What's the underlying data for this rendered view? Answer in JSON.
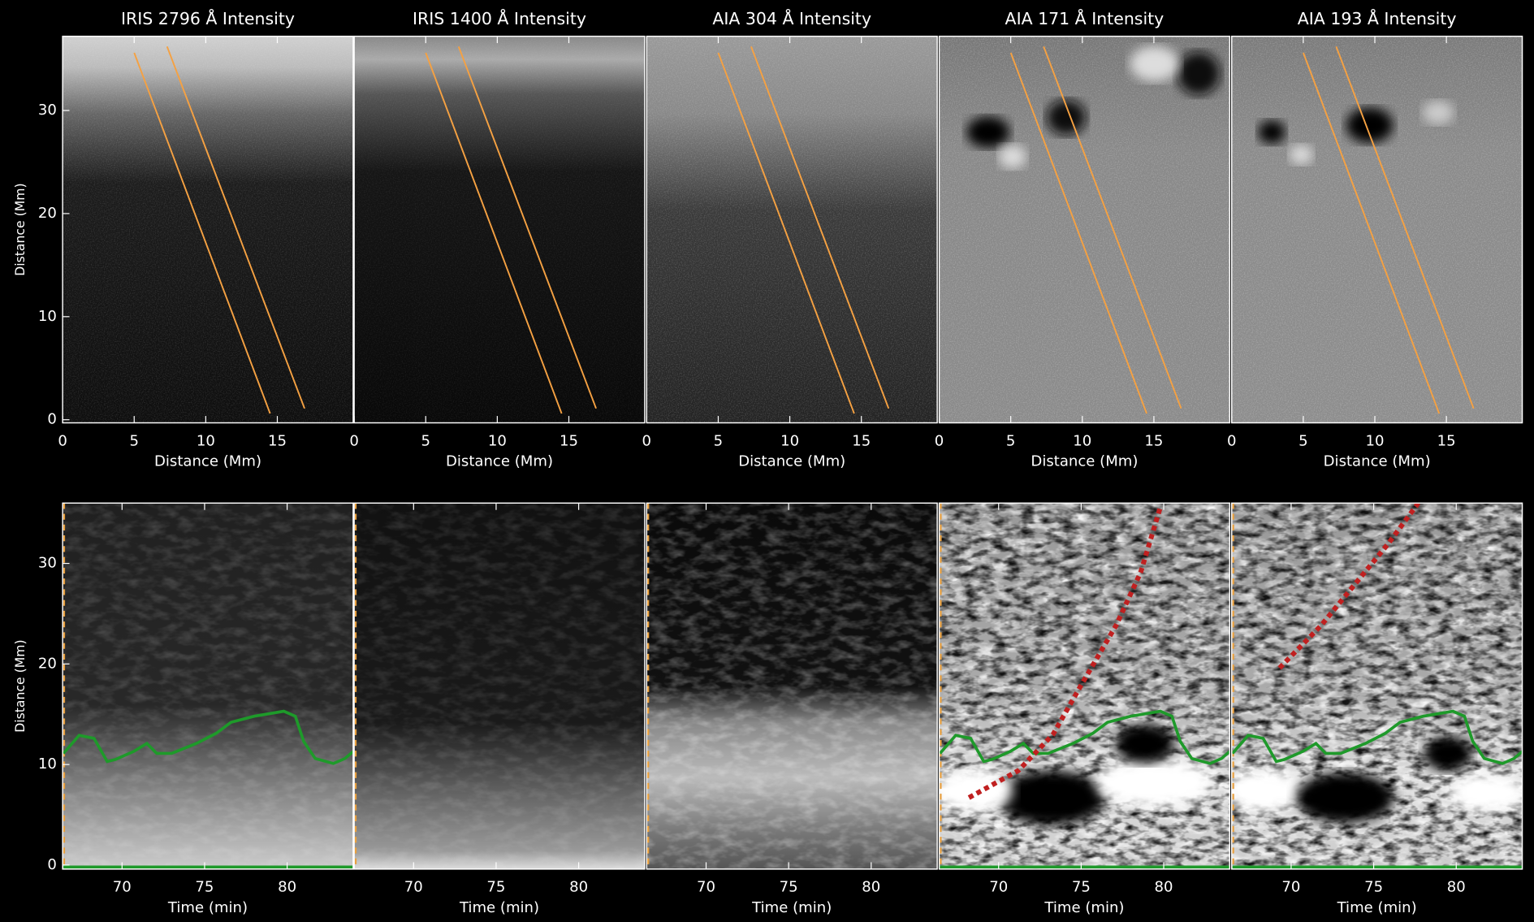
{
  "chart_data": [
    {
      "type": "line",
      "title": "IRIS 2796 Å Intensity",
      "xlabel": "Distance (Mm)",
      "ylabel": "Distance (Mm)",
      "xlim": [
        0,
        20.3
      ],
      "ylim": [
        -0.3,
        37.2
      ],
      "xticks": [
        0,
        5,
        10,
        15
      ],
      "yticks": [
        0,
        10,
        20,
        30
      ],
      "series": [
        {
          "color": "#f5a142",
          "x": [
            5.0,
            14.5
          ],
          "values": [
            35.6,
            0.6
          ]
        },
        {
          "color": "#f5a142",
          "x": [
            7.3,
            16.9
          ],
          "values": [
            36.2,
            1.1
          ]
        }
      ]
    },
    {
      "type": "line",
      "title": "IRIS 1400 Å Intensity",
      "xlabel": "Distance (Mm)",
      "xlim": [
        0,
        20.3
      ],
      "ylim": [
        -0.3,
        37.2
      ],
      "xticks": [
        0,
        5,
        10,
        15
      ],
      "series": [
        {
          "color": "#f5a142",
          "x": [
            5.0,
            14.5
          ],
          "values": [
            35.6,
            0.6
          ]
        },
        {
          "color": "#f5a142",
          "x": [
            7.3,
            16.9
          ],
          "values": [
            36.2,
            1.1
          ]
        }
      ]
    },
    {
      "type": "line",
      "title": "AIA 304 Å Intensity",
      "xlabel": "Distance (Mm)",
      "xlim": [
        0,
        20.3
      ],
      "ylim": [
        -0.3,
        37.2
      ],
      "xticks": [
        0,
        5,
        10,
        15
      ],
      "series": [
        {
          "color": "#f5a142",
          "x": [
            5.0,
            14.5
          ],
          "values": [
            35.6,
            0.6
          ]
        },
        {
          "color": "#f5a142",
          "x": [
            7.3,
            16.9
          ],
          "values": [
            36.2,
            1.1
          ]
        }
      ]
    },
    {
      "type": "line",
      "title": "AIA 171 Å Intensity",
      "xlabel": "Distance (Mm)",
      "xlim": [
        0,
        20.3
      ],
      "ylim": [
        -0.3,
        37.2
      ],
      "xticks": [
        0,
        5,
        10,
        15
      ],
      "series": [
        {
          "color": "#f5a142",
          "x": [
            5.0,
            14.5
          ],
          "values": [
            35.6,
            0.6
          ]
        },
        {
          "color": "#f5a142",
          "x": [
            7.3,
            16.9
          ],
          "values": [
            36.2,
            1.1
          ]
        }
      ]
    },
    {
      "type": "line",
      "title": "AIA 193 Å Intensity",
      "xlabel": "Distance (Mm)",
      "xlim": [
        0,
        20.3
      ],
      "ylim": [
        -0.3,
        37.2
      ],
      "xticks": [
        0,
        5,
        10,
        15
      ],
      "series": [
        {
          "color": "#f5a142",
          "x": [
            5.0,
            14.5
          ],
          "values": [
            35.6,
            0.6
          ]
        },
        {
          "color": "#f5a142",
          "x": [
            7.3,
            16.9
          ],
          "values": [
            36.2,
            1.1
          ]
        }
      ]
    },
    {
      "type": "line",
      "xlabel": "Time (min)",
      "ylabel": "Distance (Mm)",
      "xlim": [
        66.4,
        84
      ],
      "ylim": [
        -0.4,
        36
      ],
      "xticks": [
        70,
        75,
        80
      ],
      "yticks": [
        0,
        10,
        20,
        30
      ],
      "series": [
        {
          "color": "#1e9a2a",
          "x": [
            66.45,
            67.4,
            68.3,
            69.1,
            69.6,
            70.7,
            71.5,
            72.1,
            73.0,
            74.5,
            75.7,
            76.6,
            78.0,
            79.8,
            80.5,
            81.0,
            81.7,
            82.8,
            83.5,
            84.0
          ],
          "values": [
            11.1,
            12.9,
            12.6,
            10.3,
            10.5,
            11.3,
            12.1,
            11.1,
            11.1,
            12.1,
            13.1,
            14.2,
            14.8,
            15.3,
            14.8,
            12.3,
            10.6,
            10.1,
            10.6,
            11.3
          ]
        },
        {
          "color": "#1e9a2a",
          "x": [
            66.45,
            84.0
          ],
          "values": [
            -0.2,
            -0.2
          ]
        }
      ]
    },
    {
      "type": "line",
      "xlabel": "Time (min)",
      "xlim": [
        66.4,
        84
      ],
      "ylim": [
        -0.4,
        36
      ],
      "xticks": [
        70,
        75,
        80
      ],
      "series": []
    },
    {
      "type": "line",
      "xlabel": "Time (min)",
      "xlim": [
        66.4,
        84
      ],
      "ylim": [
        -0.4,
        36
      ],
      "xticks": [
        70,
        75,
        80
      ],
      "series": []
    },
    {
      "type": "line",
      "xlabel": "Time (min)",
      "xlim": [
        66.4,
        84
      ],
      "ylim": [
        -0.4,
        36
      ],
      "xticks": [
        70,
        75,
        80
      ],
      "series": [
        {
          "color": "#1e9a2a",
          "x": [
            66.45,
            67.4,
            68.3,
            69.1,
            69.6,
            70.7,
            71.5,
            72.1,
            73.0,
            74.5,
            75.7,
            76.6,
            78.0,
            79.8,
            80.5,
            81.0,
            81.7,
            82.8,
            83.5,
            84.0
          ],
          "values": [
            11.1,
            12.9,
            12.6,
            10.3,
            10.5,
            11.3,
            12.1,
            11.1,
            11.1,
            12.1,
            13.1,
            14.2,
            14.8,
            15.3,
            14.8,
            12.3,
            10.6,
            10.1,
            10.6,
            11.3
          ]
        },
        {
          "color": "#1e9a2a",
          "x": [
            66.45,
            84.0
          ],
          "values": [
            -0.2,
            -0.2
          ]
        },
        {
          "color": "#c02020",
          "style": "dotted",
          "x": [
            68.2,
            71.2,
            73.3,
            75.0,
            77.1,
            78.6,
            79.8
          ],
          "values": [
            6.7,
            9.4,
            13.0,
            17.9,
            23.8,
            29.1,
            35.6
          ]
        }
      ]
    },
    {
      "type": "line",
      "xlabel": "Time (min)",
      "xlim": [
        66.4,
        84
      ],
      "ylim": [
        -0.4,
        36
      ],
      "xticks": [
        70,
        75,
        80
      ],
      "series": [
        {
          "color": "#1e9a2a",
          "x": [
            66.45,
            67.4,
            68.3,
            69.1,
            69.6,
            70.7,
            71.5,
            72.1,
            73.0,
            74.5,
            75.7,
            76.6,
            78.0,
            79.8,
            80.5,
            81.0,
            81.7,
            82.8,
            83.5,
            84.0
          ],
          "values": [
            11.1,
            12.9,
            12.6,
            10.3,
            10.5,
            11.3,
            12.1,
            11.1,
            11.1,
            12.1,
            13.1,
            14.2,
            14.8,
            15.3,
            14.8,
            12.3,
            10.6,
            10.1,
            10.6,
            11.3
          ]
        },
        {
          "color": "#1e9a2a",
          "x": [
            66.45,
            84.0
          ],
          "values": [
            -0.2,
            -0.2
          ]
        },
        {
          "color": "#c02020",
          "style": "dotted",
          "x": [
            69.3,
            71.8,
            74.2,
            75.9,
            77.7
          ],
          "values": [
            19.6,
            23.8,
            28.6,
            32.0,
            36.0
          ]
        }
      ]
    }
  ]
}
